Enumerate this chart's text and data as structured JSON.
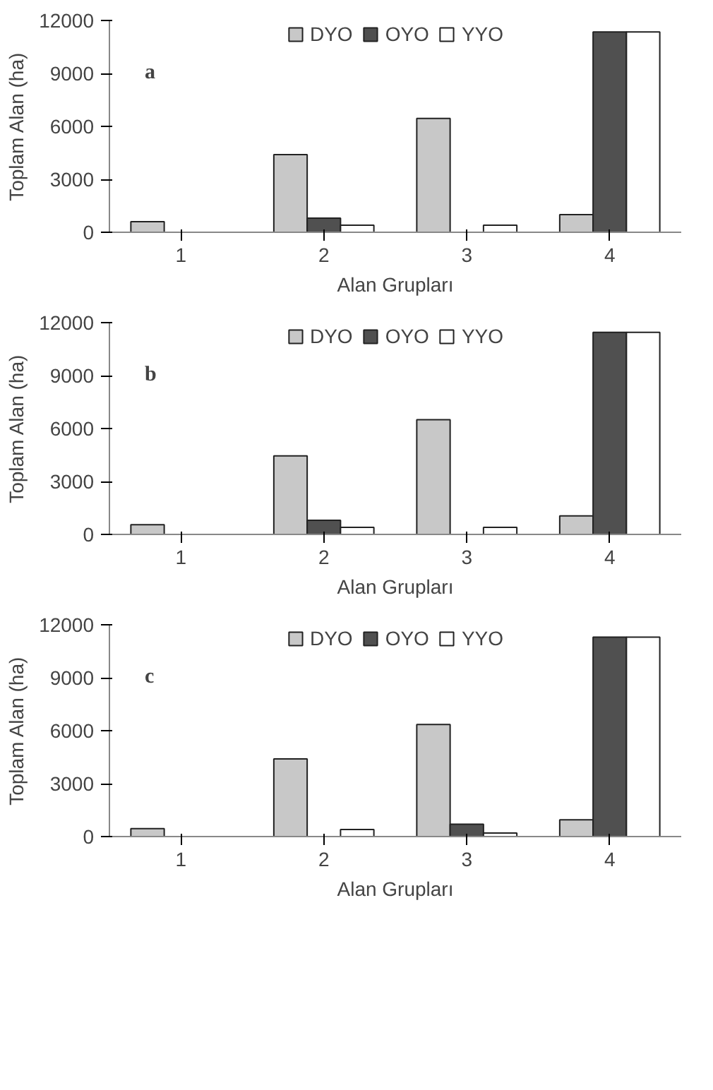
{
  "chart_data": [
    {
      "type": "bar",
      "xlabel": "Alan Grupları",
      "ylabel": "Toplam Alan (ha)",
      "categories": [
        "1",
        "2",
        "3",
        "4"
      ],
      "ylim": [
        0,
        12000
      ],
      "yticks": [
        0,
        3000,
        6000,
        9000,
        12000
      ],
      "grid": false,
      "legend": "top",
      "annotations": [
        "a"
      ],
      "series": [
        {
          "name": "DYO",
          "color": "#c8c8c8",
          "values": [
            600,
            4400,
            6450,
            1000
          ]
        },
        {
          "name": "OYO",
          "color": "#505050",
          "values": [
            null,
            800,
            null,
            11350
          ]
        },
        {
          "name": "YYO",
          "color": "#ffffff",
          "values": [
            null,
            400,
            400,
            11350
          ]
        }
      ]
    },
    {
      "type": "bar",
      "xlabel": "Alan Grupları",
      "ylabel": "Toplam Alan (ha)",
      "categories": [
        "1",
        "2",
        "3",
        "4"
      ],
      "ylim": [
        0,
        12000
      ],
      "yticks": [
        0,
        3000,
        6000,
        9000,
        12000
      ],
      "grid": false,
      "legend": "top",
      "annotations": [
        "b"
      ],
      "series": [
        {
          "name": "DYO",
          "color": "#c8c8c8",
          "values": [
            550,
            4450,
            6500,
            1050
          ]
        },
        {
          "name": "OYO",
          "color": "#505050",
          "values": [
            null,
            800,
            null,
            11450
          ]
        },
        {
          "name": "YYO",
          "color": "#ffffff",
          "values": [
            null,
            400,
            400,
            11450
          ]
        }
      ]
    },
    {
      "type": "bar",
      "xlabel": "Alan Grupları",
      "ylabel": "Toplam Alan (ha)",
      "categories": [
        "1",
        "2",
        "3",
        "4"
      ],
      "ylim": [
        0,
        12000
      ],
      "yticks": [
        0,
        3000,
        6000,
        9000,
        12000
      ],
      "grid": false,
      "legend": "top",
      "annotations": [
        "c"
      ],
      "series": [
        {
          "name": "DYO",
          "color": "#c8c8c8",
          "values": [
            450,
            4400,
            6350,
            950
          ]
        },
        {
          "name": "OYO",
          "color": "#505050",
          "values": [
            null,
            null,
            700,
            11300
          ]
        },
        {
          "name": "YYO",
          "color": "#ffffff",
          "values": [
            null,
            400,
            200,
            11300
          ]
        }
      ]
    }
  ]
}
